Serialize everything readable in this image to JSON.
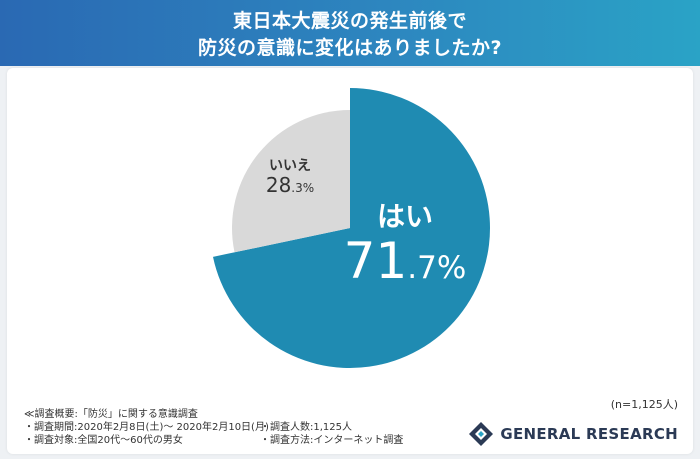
{
  "title_line1": "東日本大震災の発生前後で",
  "title_line2": "防災の意識に変化はありましたか?",
  "chart_data": {
    "type": "pie",
    "title": "東日本大震災の発生前後で 防災の意識に変化はありましたか?",
    "slices": [
      {
        "label": "はい",
        "value": 71.7,
        "unit": "%",
        "color": "#1f8bb2"
      },
      {
        "label": "いいえ",
        "value": 28.3,
        "unit": "%",
        "color": "#d9d9d9"
      }
    ]
  },
  "sample_size": "(n=1,125人)",
  "notes": {
    "heading": "≪調査概要:「防災」に関する意識調査",
    "period": "・調査期間:2020年2月8日(土)〜 2020年2月10日(月)",
    "count": "・調査人数:1,125人",
    "target": "・調査対象:全国20代〜60代の男女",
    "method": "・調査方法:インターネット調査"
  },
  "logo": {
    "name": "GENERAL RESEARCH",
    "colors": [
      "#2b3a55",
      "#2aa3c6"
    ]
  }
}
